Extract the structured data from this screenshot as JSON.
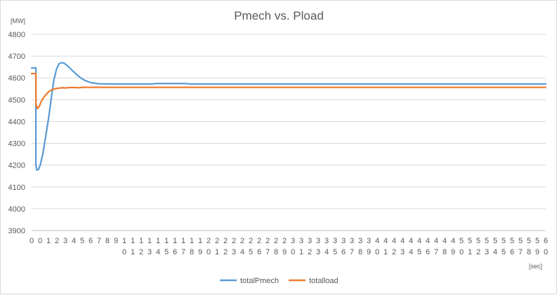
{
  "chart_data": {
    "type": "line",
    "title": "Pmech vs. Pload",
    "ylabel": "[MW]",
    "xlabel": "[sec]",
    "ylim": [
      3900,
      4800
    ],
    "yticks": [
      3900,
      4000,
      4100,
      4200,
      4300,
      4400,
      4500,
      4600,
      4700,
      4800
    ],
    "xlim": [
      0,
      60
    ],
    "xticks": [
      "0",
      "0",
      "1",
      "2",
      "3",
      "4",
      "5",
      "6",
      "7",
      "8",
      "9",
      "10",
      "11",
      "12",
      "13",
      "14",
      "15",
      "16",
      "17",
      "18",
      "19",
      "20",
      "21",
      "22",
      "23",
      "24",
      "25",
      "26",
      "27",
      "28",
      "29",
      "30",
      "31",
      "32",
      "33",
      "34",
      "35",
      "36",
      "37",
      "38",
      "39",
      "40",
      "41",
      "42",
      "43",
      "44",
      "45",
      "46",
      "47",
      "48",
      "49",
      "50",
      "51",
      "52",
      "53",
      "54",
      "55",
      "56",
      "57",
      "58",
      "59",
      "60"
    ],
    "grid": true,
    "legend": "bottom",
    "series": [
      {
        "name": "totalPmech",
        "color": "#5b9bd5",
        "points": [
          [
            0,
            4646
          ],
          [
            0.5,
            4646
          ],
          [
            0.5,
            4200
          ],
          [
            0.6,
            4178
          ],
          [
            0.8,
            4180
          ],
          [
            1.0,
            4200
          ],
          [
            1.3,
            4250
          ],
          [
            1.6,
            4320
          ],
          [
            2.0,
            4420
          ],
          [
            2.3,
            4510
          ],
          [
            2.6,
            4590
          ],
          [
            2.9,
            4640
          ],
          [
            3.2,
            4665
          ],
          [
            3.5,
            4670
          ],
          [
            3.8,
            4668
          ],
          [
            4.2,
            4655
          ],
          [
            4.6,
            4640
          ],
          [
            5.0,
            4625
          ],
          [
            5.5,
            4607
          ],
          [
            6.0,
            4593
          ],
          [
            6.5,
            4584
          ],
          [
            7.0,
            4578
          ],
          [
            7.5,
            4575
          ],
          [
            8.0,
            4573
          ],
          [
            9.0,
            4572
          ],
          [
            10,
            4572
          ],
          [
            12,
            4572
          ],
          [
            14,
            4572
          ],
          [
            14.5,
            4574
          ],
          [
            18,
            4574
          ],
          [
            18.5,
            4572
          ],
          [
            25,
            4572
          ],
          [
            35,
            4572
          ],
          [
            45,
            4572
          ],
          [
            55,
            4572
          ],
          [
            60,
            4572
          ]
        ]
      },
      {
        "name": "totalload",
        "color": "#ed7d31",
        "points": [
          [
            0,
            4620
          ],
          [
            0.5,
            4620
          ],
          [
            0.5,
            4480
          ],
          [
            0.7,
            4460
          ],
          [
            0.9,
            4470
          ],
          [
            1.1,
            4490
          ],
          [
            1.4,
            4510
          ],
          [
            1.7,
            4525
          ],
          [
            2.0,
            4537
          ],
          [
            2.4,
            4546
          ],
          [
            2.8,
            4551
          ],
          [
            3.2,
            4553
          ],
          [
            3.6,
            4555
          ],
          [
            4.0,
            4554
          ],
          [
            4.5,
            4556
          ],
          [
            5.0,
            4556
          ],
          [
            5.5,
            4555
          ],
          [
            6.0,
            4557
          ],
          [
            7,
            4557
          ],
          [
            8,
            4557
          ],
          [
            10,
            4557
          ],
          [
            20,
            4557
          ],
          [
            30,
            4557
          ],
          [
            40,
            4557
          ],
          [
            50,
            4557
          ],
          [
            60,
            4557
          ]
        ]
      }
    ]
  }
}
